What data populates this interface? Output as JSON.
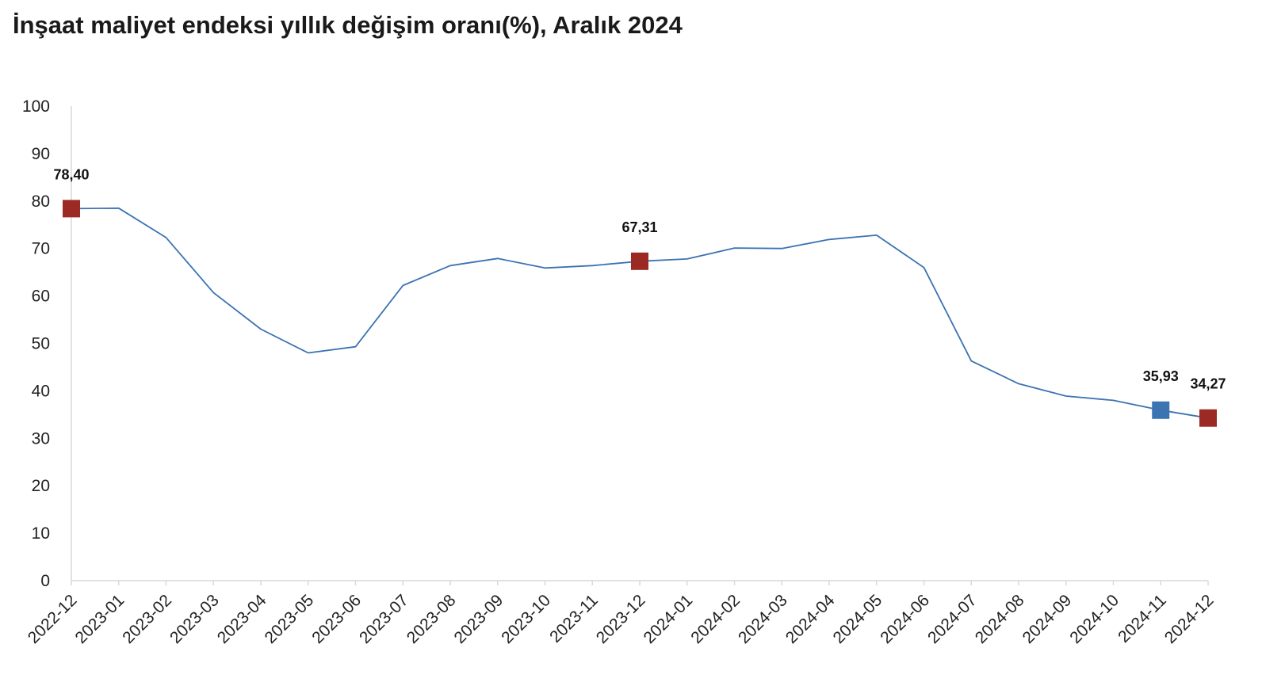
{
  "chart_data": {
    "type": "line",
    "title": "İnşaat maliyet endeksi yıllık değişim oranı(%), Aralık 2024",
    "xlabel": "",
    "ylabel": "",
    "ylim": [
      0,
      100
    ],
    "yticks": [
      0,
      10,
      20,
      30,
      40,
      50,
      60,
      70,
      80,
      90,
      100
    ],
    "grid": false,
    "legend": "none",
    "categories": [
      "2022-12",
      "2023-01",
      "2023-02",
      "2023-03",
      "2023-04",
      "2023-05",
      "2023-06",
      "2023-07",
      "2023-08",
      "2023-09",
      "2023-10",
      "2023-11",
      "2023-12",
      "2024-01",
      "2024-02",
      "2024-03",
      "2024-04",
      "2024-05",
      "2024-06",
      "2024-07",
      "2024-08",
      "2024-09",
      "2024-10",
      "2024-11",
      "2024-12"
    ],
    "series": [
      {
        "values": [
          78.4,
          78.5,
          72.3,
          60.7,
          53.0,
          48.0,
          49.3,
          62.2,
          66.4,
          67.9,
          65.9,
          66.4,
          67.31,
          67.8,
          70.1,
          70.0,
          71.9,
          72.8,
          66.0,
          46.3,
          41.5,
          38.9,
          38.0,
          35.93,
          34.27
        ],
        "color": "#3b73b3"
      }
    ],
    "annotations": [
      {
        "index": 0,
        "label": "78,40",
        "marker_color": "#9b2a24"
      },
      {
        "index": 12,
        "label": "67,31",
        "marker_color": "#9b2a24"
      },
      {
        "index": 23,
        "label": "35,93",
        "marker_color": "#3b73b3"
      },
      {
        "index": 24,
        "label": "34,27",
        "marker_color": "#9b2a24"
      }
    ]
  }
}
